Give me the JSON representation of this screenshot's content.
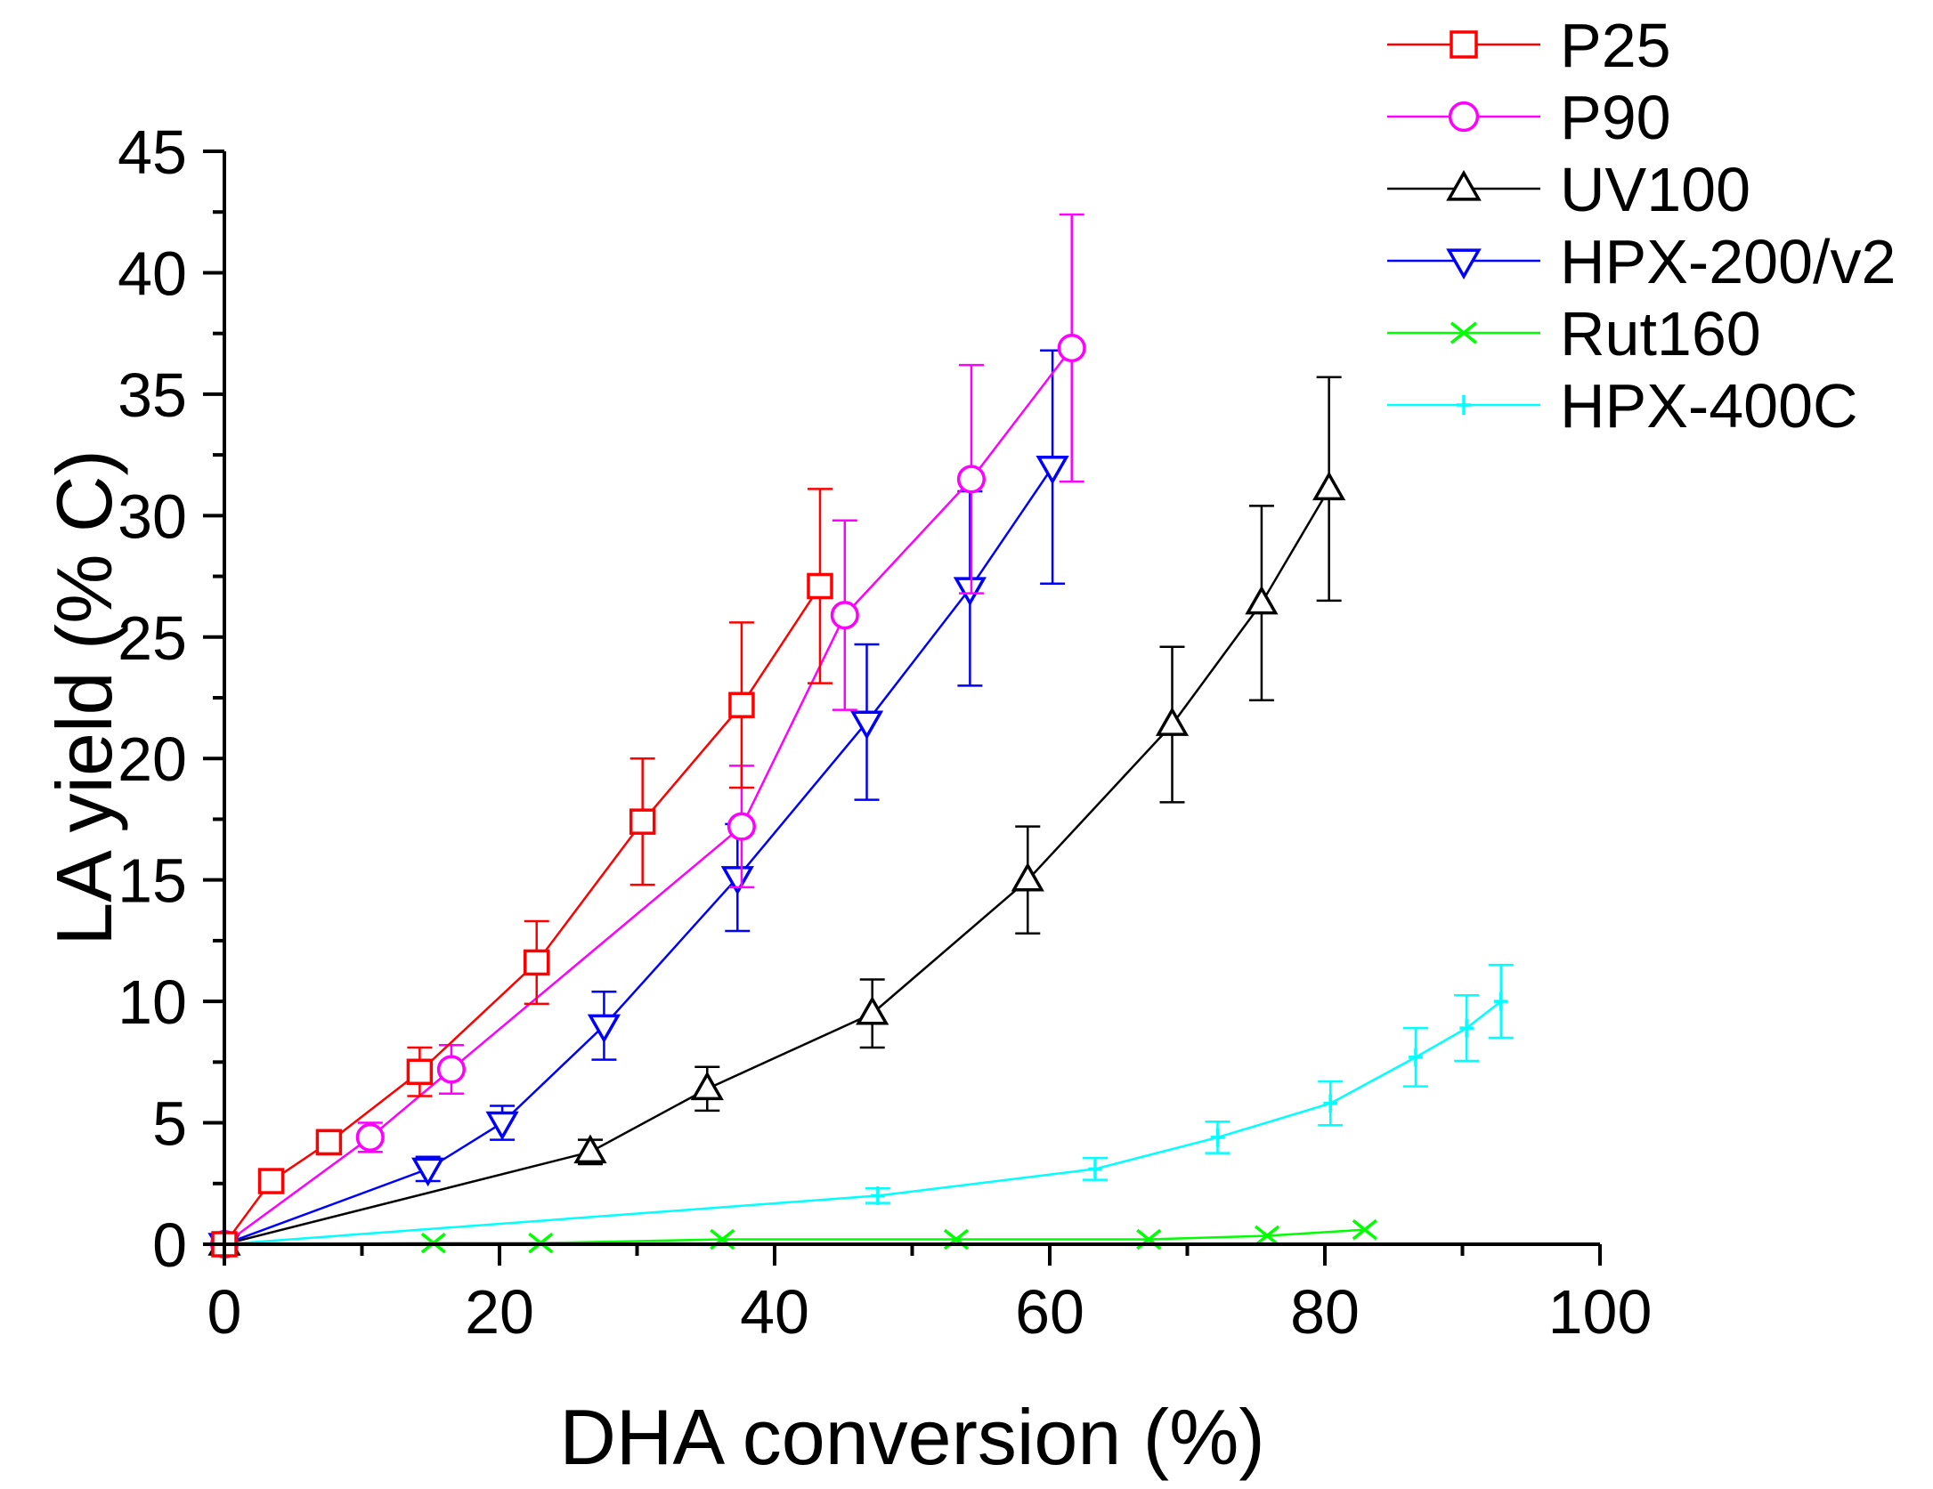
{
  "chart_data": {
    "type": "scatter",
    "title": "",
    "xlabel": "DHA conversion (%)",
    "ylabel": "LA yield (% C)",
    "xlim": [
      0,
      100
    ],
    "ylim": [
      0,
      45
    ],
    "x_ticks": [
      0,
      20,
      40,
      60,
      80,
      100
    ],
    "y_ticks": [
      0,
      5,
      10,
      15,
      20,
      25,
      30,
      35,
      40,
      45
    ],
    "grid": false,
    "legend_position": "top-right, outside plot area",
    "error_bars": true,
    "series": [
      {
        "name": "P25",
        "color": "#ff0000",
        "marker": "square",
        "points": [
          {
            "x": 0,
            "y": 0,
            "err": 0
          },
          {
            "x": 3.4,
            "y": 2.6,
            "err": 0
          },
          {
            "x": 7.6,
            "y": 4.2,
            "err": 0.5
          },
          {
            "x": 14.2,
            "y": 7.1,
            "err": 1.0
          },
          {
            "x": 22.7,
            "y": 11.6,
            "err": 1.7
          },
          {
            "x": 30.4,
            "y": 17.4,
            "err": 2.6
          },
          {
            "x": 37.6,
            "y": 22.2,
            "err": 3.4
          },
          {
            "x": 43.3,
            "y": 27.1,
            "err": 4.0
          }
        ]
      },
      {
        "name": "P90",
        "color": "#ff00ff",
        "marker": "circle",
        "points": [
          {
            "x": 0,
            "y": 0,
            "err": 0
          },
          {
            "x": 10.6,
            "y": 4.4,
            "err": 0.6
          },
          {
            "x": 16.5,
            "y": 7.2,
            "err": 1.0
          },
          {
            "x": 37.6,
            "y": 17.2,
            "err": 2.5
          },
          {
            "x": 45.1,
            "y": 25.9,
            "err": 3.9
          },
          {
            "x": 54.3,
            "y": 31.5,
            "err": 4.7
          },
          {
            "x": 61.6,
            "y": 36.9,
            "err": 5.5
          }
        ]
      },
      {
        "name": "UV100",
        "color": "#000000",
        "marker": "triangle-up",
        "points": [
          {
            "x": 0,
            "y": 0,
            "err": 0
          },
          {
            "x": 26.6,
            "y": 3.8,
            "err": 0.5
          },
          {
            "x": 35.1,
            "y": 6.4,
            "err": 0.9
          },
          {
            "x": 47.1,
            "y": 9.5,
            "err": 1.4
          },
          {
            "x": 58.4,
            "y": 15.0,
            "err": 2.2
          },
          {
            "x": 68.9,
            "y": 21.4,
            "err": 3.2
          },
          {
            "x": 75.4,
            "y": 26.4,
            "err": 4.0
          },
          {
            "x": 80.3,
            "y": 31.1,
            "err": 4.6
          }
        ]
      },
      {
        "name": "HPX-200/v2",
        "color": "#0000ff",
        "marker": "triangle-down",
        "points": [
          {
            "x": 0,
            "y": 0,
            "err": 0
          },
          {
            "x": 14.8,
            "y": 3.1,
            "err": 0.5
          },
          {
            "x": 20.2,
            "y": 5.0,
            "err": 0.7
          },
          {
            "x": 27.6,
            "y": 9.0,
            "err": 1.4
          },
          {
            "x": 37.3,
            "y": 15.1,
            "err": 2.2
          },
          {
            "x": 46.7,
            "y": 21.5,
            "err": 3.2
          },
          {
            "x": 54.2,
            "y": 27.0,
            "err": 4.0
          },
          {
            "x": 60.2,
            "y": 32.0,
            "err": 4.8
          }
        ]
      },
      {
        "name": "Rut160",
        "color": "#00ff00",
        "marker": "x",
        "points": [
          {
            "x": 0,
            "y": 0,
            "err": 0
          },
          {
            "x": 15.2,
            "y": 0.05,
            "err": 0
          },
          {
            "x": 23.0,
            "y": 0.05,
            "err": 0
          },
          {
            "x": 36.2,
            "y": 0.2,
            "err": 0
          },
          {
            "x": 53.2,
            "y": 0.2,
            "err": 0
          },
          {
            "x": 67.2,
            "y": 0.2,
            "err": 0
          },
          {
            "x": 75.8,
            "y": 0.35,
            "err": 0
          },
          {
            "x": 82.9,
            "y": 0.6,
            "err": 0
          }
        ]
      },
      {
        "name": "HPX-400C",
        "color": "#00ffff",
        "marker": "plus",
        "points": [
          {
            "x": 0,
            "y": 0,
            "err": 0
          },
          {
            "x": 47.5,
            "y": 2.0,
            "err": 0.3
          },
          {
            "x": 63.3,
            "y": 3.1,
            "err": 0.45
          },
          {
            "x": 72.2,
            "y": 4.4,
            "err": 0.65
          },
          {
            "x": 80.4,
            "y": 5.8,
            "err": 0.9
          },
          {
            "x": 86.6,
            "y": 7.7,
            "err": 1.2
          },
          {
            "x": 90.3,
            "y": 8.9,
            "err": 1.35
          },
          {
            "x": 92.8,
            "y": 10.0,
            "err": 1.5
          }
        ]
      }
    ]
  }
}
